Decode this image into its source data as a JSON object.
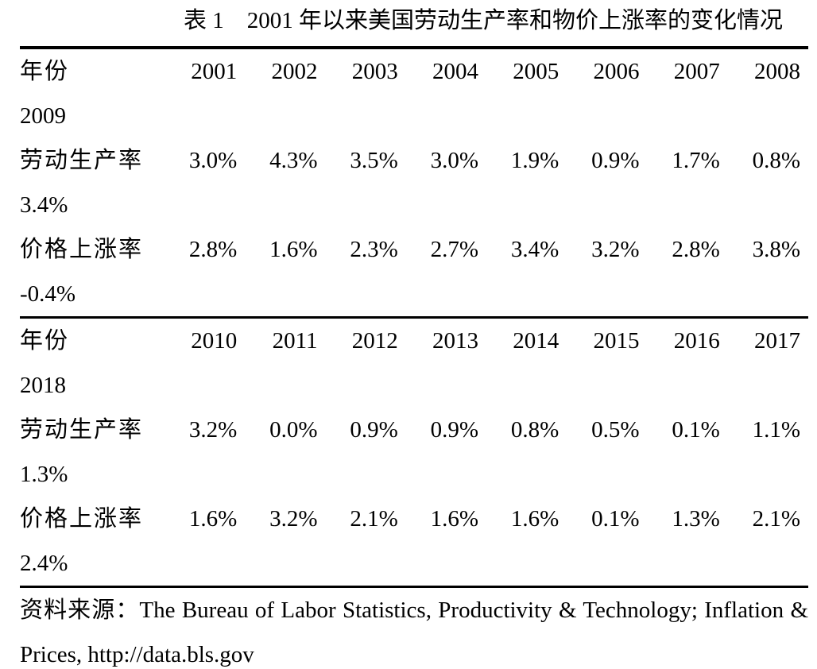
{
  "page": {
    "background_color": "#ffffff",
    "text_color": "#000000"
  },
  "title": "表 1　2001 年以来美国劳动生产率和物价上涨率的变化情况",
  "table": {
    "blocks": [
      {
        "rows": [
          {
            "label": "年份",
            "values": [
              "2001",
              "2002",
              "2003",
              "2004",
              "2005",
              "2006",
              "2007",
              "2008"
            ],
            "overflow": "2009"
          },
          {
            "label": "劳动生产率",
            "values": [
              "3.0%",
              "4.3%",
              "3.5%",
              "3.0%",
              "1.9%",
              "0.9%",
              "1.7%",
              "0.8%"
            ],
            "overflow": "3.4%"
          },
          {
            "label": "价格上涨率",
            "values": [
              "2.8%",
              "1.6%",
              "2.3%",
              "2.7%",
              "3.4%",
              "3.2%",
              "2.8%",
              "3.8%"
            ],
            "overflow": "-0.4%"
          }
        ]
      },
      {
        "rows": [
          {
            "label": "年份",
            "values": [
              "2010",
              "2011",
              "2012",
              "2013",
              "2014",
              "2015",
              "2016",
              "2017"
            ],
            "overflow": "2018"
          },
          {
            "label": "劳动生产率",
            "values": [
              "3.2%",
              "0.0%",
              "0.9%",
              "0.9%",
              "0.8%",
              "0.5%",
              "0.1%",
              "1.1%"
            ],
            "overflow": "1.3%"
          },
          {
            "label": "价格上涨率",
            "values": [
              "1.6%",
              "3.2%",
              "2.1%",
              "1.6%",
              "1.6%",
              "0.1%",
              "1.3%",
              "2.1%"
            ],
            "overflow": "2.4%"
          }
        ]
      }
    ]
  },
  "source_note": {
    "line1": "资料来源：The Bureau of Labor Statistics, Productivity & Technology; Inflation &",
    "line2": "Prices, http://data.bls.gov"
  }
}
